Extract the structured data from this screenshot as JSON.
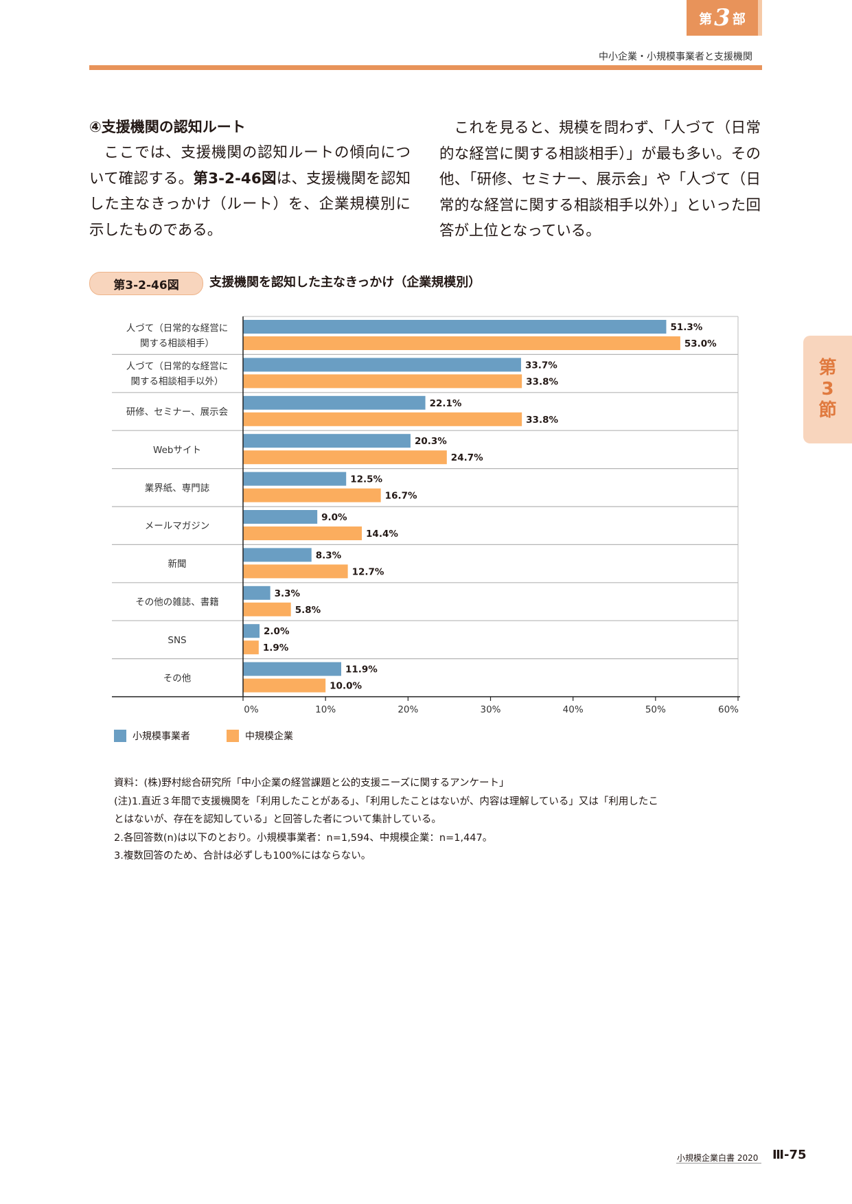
{
  "header": {
    "part_prefix": "第",
    "part_number": "3",
    "part_suffix": "部",
    "title": "中小企業・小規模事業者と支援機関"
  },
  "side_tab": {
    "line1": "第",
    "line2": "3",
    "line3": "節"
  },
  "body": {
    "section_heading": "④支援機関の認知ルート",
    "left_para_1": "ここでは、支援機関の認知ルートの傾向について確認する。",
    "left_para_ref": "第3-2-46図",
    "left_para_2": "は、支援機関を認知した主なきっかけ（ルート）を、企業規模別に示したものである。",
    "right_para": "これを見ると、規模を問わず、「人づて（日常的な経営に関する相談相手）」が最も多い。その他、「研修、セミナー、展示会」や「人づて（日常的な経営に関する相談相手以外）」といった回答が上位となっている。"
  },
  "figure": {
    "label": "第3-2-46図",
    "title": "支援機関を認知した主なきっかけ（企業規模別）"
  },
  "chart_data": {
    "type": "bar",
    "orientation": "horizontal",
    "categories": [
      [
        "人づて（日常的な経営に",
        "関する相談相手）"
      ],
      [
        "人づて（日常的な経営に",
        "関する相談相手以外）"
      ],
      [
        "研修、セミナー、展示会"
      ],
      [
        "Webサイト"
      ],
      [
        "業界紙、専門誌"
      ],
      [
        "メールマガジン"
      ],
      [
        "新聞"
      ],
      [
        "その他の雑誌、書籍"
      ],
      [
        "SNS"
      ],
      [
        "その他"
      ]
    ],
    "series": [
      {
        "name": "小規模事業者",
        "color": "#6a9ec3",
        "values": [
          51.3,
          33.7,
          22.1,
          20.3,
          12.5,
          9.0,
          8.3,
          3.3,
          2.0,
          11.9
        ],
        "labels": [
          "51.3%",
          "33.7%",
          "22.1%",
          "20.3%",
          "12.5%",
          "9.0%",
          "8.3%",
          "3.3%",
          "2.0%",
          "11.9%"
        ]
      },
      {
        "name": "中規模企業",
        "color": "#fbad5e",
        "values": [
          53.0,
          33.8,
          33.8,
          24.7,
          16.7,
          14.4,
          12.7,
          5.8,
          1.9,
          10.0
        ],
        "labels": [
          "53.0%",
          "33.8%",
          "33.8%",
          "24.7%",
          "16.7%",
          "14.4%",
          "12.7%",
          "5.8%",
          "1.9%",
          "10.0%"
        ]
      }
    ],
    "xlim": [
      0,
      60
    ],
    "xticks": [
      "0%",
      "10%",
      "20%",
      "30%",
      "40%",
      "50%",
      "60%"
    ],
    "grid": false,
    "legend_position": "bottom-left"
  },
  "legend": {
    "small": "小規模事業者",
    "medium": "中規模企業"
  },
  "notes": {
    "source": "資料：(株)野村総合研究所「中小企業の経営課題と公的支援ニーズに関するアンケート」",
    "note1a": "(注)1.直近３年間で支援機関を「利用したことがある」、「利用したことはないが、内容は理解している」又は「利用したこ",
    "note1b": "とはないが、存在を認知している」と回答した者について集計している。",
    "note2": "2.各回答数(n)は以下のとおり。小規模事業者：n=1,594、中規模企業：n=1,447。",
    "note3": "3.複数回答のため、合計は必ずしも100%にはならない。"
  },
  "footer": {
    "book": "小規模企業白書 2020",
    "page": "Ⅲ-75"
  }
}
